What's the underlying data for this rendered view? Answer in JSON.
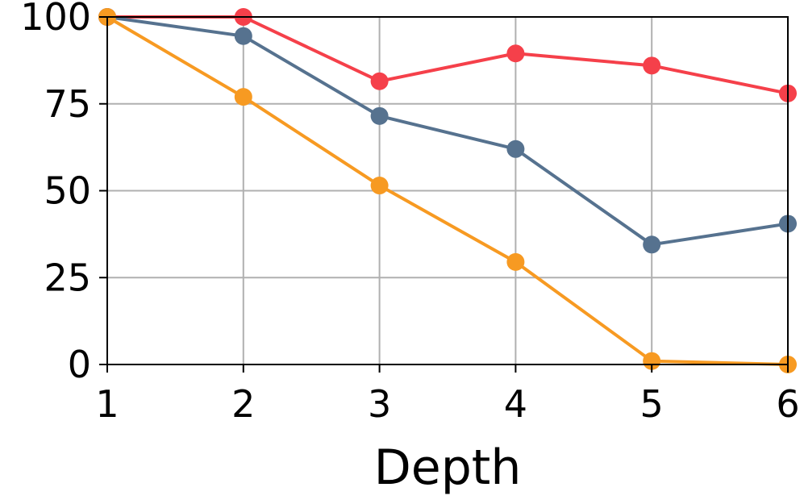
{
  "chart_data": {
    "type": "line",
    "title": "",
    "xlabel": "Depth",
    "ylabel": "",
    "x": [
      1,
      2,
      3,
      4,
      5,
      6
    ],
    "xlim": [
      1,
      6
    ],
    "ylim": [
      0,
      100
    ],
    "xticks": [
      "1",
      "2",
      "3",
      "4",
      "5",
      "6"
    ],
    "yticks": [
      "0",
      "25",
      "50",
      "75",
      "100"
    ],
    "grid": true,
    "legend": "none",
    "series": [
      {
        "color": "#f5404a",
        "values": [
          100,
          100,
          81.5,
          89.5,
          86,
          78
        ]
      },
      {
        "color": "#56728f",
        "values": [
          100,
          94.5,
          71.5,
          62,
          34.5,
          40.5
        ]
      },
      {
        "color": "#f79a22",
        "values": [
          100,
          77,
          51.5,
          29.5,
          1,
          0
        ]
      }
    ]
  }
}
